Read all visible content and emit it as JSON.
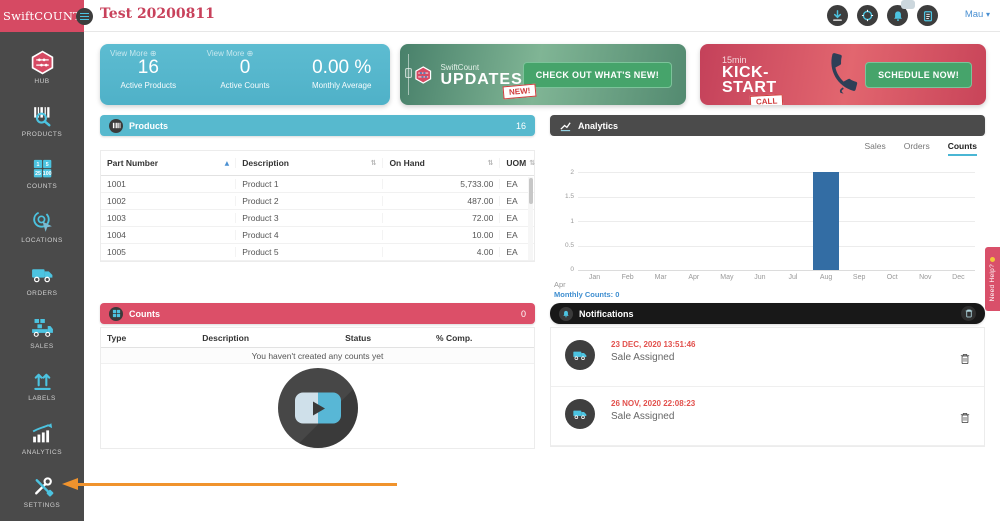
{
  "colors": {
    "brand_red": "#d64a63",
    "teal": "#57b9ce",
    "icon_teal": "#4cc3e0",
    "dark": "#4a4a4a",
    "green_button": "#46a46b",
    "link_blue": "#3e8ed0",
    "timestamp_red": "#e2504c",
    "orange_arrow": "#f0932d"
  },
  "icons": {
    "view_more_plus": "⊕",
    "sort_asc": "▲",
    "sort_both": "⇅",
    "chevron_down": "▾"
  },
  "header": {
    "logo": "SwiftCOUNT",
    "page_title": "Test 20200811",
    "user_menu": "Mau"
  },
  "sidebar": {
    "items": [
      {
        "label": "HUB"
      },
      {
        "label": "PRODUCTS"
      },
      {
        "label": "COUNTS"
      },
      {
        "label": "LOCATIONS"
      },
      {
        "label": "ORDERS"
      },
      {
        "label": "SALES"
      },
      {
        "label": "LABELS"
      },
      {
        "label": "ANALYTICS"
      },
      {
        "label": "SETTINGS"
      }
    ]
  },
  "stats": {
    "items": [
      {
        "view_more": "View More",
        "value": "16",
        "label": "Active Products"
      },
      {
        "view_more": "View More",
        "value": "0",
        "label": "Active Counts"
      },
      {
        "view_more": "",
        "value": "0.00 %",
        "label": "Monthly Average"
      }
    ]
  },
  "updates_banner": {
    "brand": "SwiftCount",
    "title": "UPDATES",
    "badge": "NEW!",
    "button": "CHECK OUT WHAT'S NEW!"
  },
  "kickstart_banner": {
    "duration": "15min",
    "title": "KICK-START",
    "badge": "CALL",
    "button": "SCHEDULE NOW!"
  },
  "products": {
    "title": "Products",
    "count": "16",
    "columns": [
      "Part Number",
      "Description",
      "On Hand",
      "UOM"
    ],
    "rows": [
      [
        "1001",
        "Product 1",
        "5,733.00",
        "EA"
      ],
      [
        "1002",
        "Product 2",
        "487.00",
        "EA"
      ],
      [
        "1003",
        "Product 3",
        "72.00",
        "EA"
      ],
      [
        "1004",
        "Product 4",
        "10.00",
        "EA"
      ],
      [
        "1005",
        "Product 5",
        "4.00",
        "EA"
      ]
    ]
  },
  "analytics": {
    "title": "Analytics",
    "tabs": [
      "Sales",
      "Orders",
      "Counts"
    ],
    "active_tab": "Counts",
    "chart_data": {
      "type": "bar",
      "title": "",
      "xlabel": "",
      "ylabel": "",
      "categories": [
        "Jan",
        "Feb",
        "Mar",
        "Apr",
        "May",
        "Jun",
        "Jul",
        "Aug",
        "Sep",
        "Oct",
        "Nov",
        "Dec"
      ],
      "values": [
        0,
        0,
        0,
        0,
        0,
        0,
        0,
        2,
        0,
        0,
        0,
        0
      ],
      "yticks": [
        "2",
        "1.5",
        "1",
        "0.5",
        "0"
      ],
      "ylim": [
        0,
        2
      ],
      "bar_color": "#336da4",
      "grid": true,
      "legend": false
    },
    "footer_month": "Apr",
    "footer_counts": "Monthly Counts: 0"
  },
  "counts": {
    "title": "Counts",
    "count": "0",
    "columns": [
      "Type",
      "Description",
      "Status",
      "% Comp."
    ],
    "empty_message": "You haven't created any counts yet"
  },
  "notifications": {
    "title": "Notifications",
    "items": [
      {
        "timestamp": "23 DEC, 2020 13:51:46",
        "text": "Sale Assigned"
      },
      {
        "timestamp": "26 NOV, 2020 22:08:23",
        "text": "Sale Assigned"
      }
    ]
  },
  "need_help": {
    "label": "Need Help?"
  }
}
